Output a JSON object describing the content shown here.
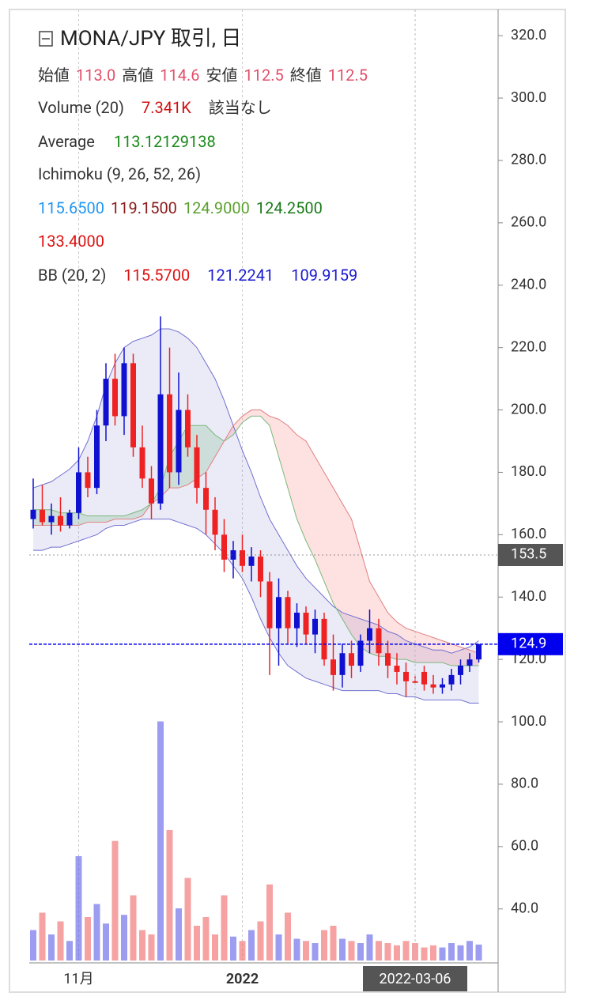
{
  "chart_data": {
    "type": "candlestick",
    "title": "MONA/JPY 取引, 日",
    "info": [
      [
        {
          "text": "始値"
        },
        {
          "text": "113.0",
          "color": "#e0506a"
        },
        {
          "text": "高値"
        },
        {
          "text": "114.6",
          "color": "#e0506a"
        },
        {
          "text": "安値"
        },
        {
          "text": "112.5",
          "color": "#e0506a"
        },
        {
          "text": "終値"
        },
        {
          "text": "112.5",
          "color": "#e0506a"
        }
      ],
      [
        {
          "text": "Volume (20)"
        },
        {
          "text": "7.341K",
          "color": "#d01010"
        },
        {
          "text": "該当なし"
        }
      ],
      [
        {
          "text": "Average"
        },
        {
          "text": "113.12129138",
          "color": "#1a8a1a"
        }
      ],
      [
        {
          "text": "Ichimoku (9, 26, 52, 26)"
        }
      ],
      [
        {
          "text": "115.6500",
          "color": "#2196f3"
        },
        {
          "text": "119.1500",
          "color": "#8b1a1a"
        },
        {
          "text": "124.9000",
          "color": "#5aa02c"
        },
        {
          "text": "124.2500",
          "color": "#1a7a1a"
        }
      ],
      [
        {
          "text": "133.4000",
          "color": "#dd1111"
        }
      ],
      [
        {
          "text": "BB (20, 2)"
        },
        {
          "text": "115.5700",
          "color": "#dd1111"
        },
        {
          "text": "121.2241",
          "color": "#1a1ad0"
        },
        {
          "text": "109.9159",
          "color": "#1a1ad0"
        }
      ]
    ],
    "categories": [
      null,
      null,
      null,
      null,
      null,
      "11月",
      null,
      null,
      null,
      null,
      null,
      null,
      null,
      null,
      null,
      null,
      null,
      null,
      null,
      null,
      null,
      null,
      null,
      "2022",
      null,
      null,
      null,
      null,
      null,
      null,
      null,
      null,
      null,
      null,
      null,
      null,
      null,
      null,
      null,
      null,
      null,
      null,
      "2022-03-06",
      null,
      null,
      null,
      null,
      null,
      null,
      null
    ],
    "crosshair_index": 42,
    "open": [
      165,
      168,
      164,
      166,
      163,
      167,
      180,
      175,
      195,
      210,
      198,
      215,
      188,
      178,
      170,
      205,
      180,
      200,
      188,
      175,
      168,
      160,
      152,
      155,
      150,
      153,
      145,
      130,
      140,
      130,
      135,
      128,
      133,
      120,
      115,
      122,
      118,
      126,
      130,
      122,
      118,
      116,
      113.0,
      116,
      112,
      111,
      112,
      115,
      118,
      120
    ],
    "high": [
      178,
      176,
      170,
      172,
      168,
      188,
      185,
      200,
      215,
      218,
      220,
      218,
      195,
      182,
      230,
      220,
      212,
      205,
      192,
      180,
      172,
      165,
      158,
      160,
      156,
      155,
      148,
      146,
      142,
      138,
      137,
      136,
      135,
      128,
      125,
      126,
      128,
      136,
      133,
      126,
      122,
      119,
      114.6,
      118,
      115,
      114,
      117,
      120,
      122,
      125
    ],
    "low": [
      162,
      163,
      160,
      161,
      162,
      165,
      172,
      173,
      190,
      195,
      192,
      185,
      175,
      165,
      168,
      175,
      176,
      185,
      170,
      160,
      155,
      148,
      146,
      148,
      145,
      140,
      115,
      118,
      125,
      124,
      125,
      122,
      118,
      110,
      111,
      114,
      116,
      122,
      118,
      114,
      112,
      108,
      112.5,
      110,
      109,
      109,
      110,
      112,
      116,
      119
    ],
    "close": [
      168,
      164,
      166,
      163,
      167,
      180,
      175,
      195,
      210,
      198,
      215,
      188,
      178,
      170,
      205,
      180,
      200,
      188,
      175,
      168,
      160,
      152,
      155,
      150,
      153,
      145,
      130,
      140,
      130,
      135,
      128,
      133,
      120,
      115,
      122,
      118,
      126,
      130,
      122,
      118,
      116,
      113,
      112.5,
      112,
      111,
      112,
      115,
      118,
      120,
      124.9
    ],
    "up_color": "#1010d0",
    "down_color": "#ee2222",
    "volume": [
      14000,
      22000,
      12000,
      18000,
      9000,
      48000,
      20000,
      26000,
      17000,
      55000,
      21000,
      30000,
      14000,
      12000,
      110000,
      60000,
      24000,
      38000,
      16000,
      20000,
      12000,
      30000,
      11000,
      9000,
      14000,
      18000,
      35000,
      12000,
      22000,
      10000,
      9000,
      8000,
      14000,
      16000,
      10000,
      9000,
      8000,
      12000,
      9000,
      8000,
      7000,
      9000,
      8000,
      6000,
      7000,
      6000,
      8000,
      7000,
      9000,
      7341
    ],
    "vlim": [
      0,
      120000
    ],
    "bb_upper": [
      175,
      176,
      177,
      179,
      181,
      184,
      190,
      198,
      208,
      215,
      220,
      222,
      223,
      224,
      226,
      226,
      225,
      223,
      220,
      215,
      210,
      203,
      195,
      187,
      180,
      172,
      165,
      160,
      155,
      150,
      146,
      143,
      140,
      137,
      135,
      134,
      133,
      132,
      131,
      129,
      128,
      126,
      125,
      124,
      123,
      123,
      122,
      123,
      124,
      126
    ],
    "bb_lower": [
      155,
      155,
      156,
      156,
      157,
      158,
      159,
      160,
      162,
      163,
      163,
      164,
      165,
      165,
      165,
      165,
      164,
      163,
      162,
      160,
      157,
      154,
      150,
      146,
      140,
      133,
      127,
      122,
      118,
      116,
      114,
      113,
      112,
      111,
      110,
      110,
      110,
      110,
      110,
      109,
      109,
      108,
      108,
      107,
      107,
      107,
      107,
      107,
      106,
      106
    ],
    "span_a": [
      168,
      168,
      168,
      167,
      167,
      167,
      166,
      166,
      166,
      166,
      166,
      167,
      168,
      170,
      175,
      185,
      190,
      195,
      195,
      195,
      192,
      190,
      192,
      196,
      198,
      198,
      195,
      185,
      175,
      165,
      158,
      152,
      145,
      138,
      133,
      128,
      124,
      122,
      121,
      121,
      120,
      120,
      119,
      119,
      119,
      119,
      118,
      118,
      118,
      118
    ],
    "span_b": [
      163,
      163,
      163,
      163,
      163,
      163,
      164,
      164,
      164,
      165,
      165,
      165,
      166,
      170,
      172,
      175,
      175,
      176,
      178,
      180,
      185,
      190,
      195,
      198,
      200,
      200,
      198,
      197,
      195,
      192,
      190,
      185,
      180,
      175,
      170,
      165,
      155,
      145,
      140,
      135,
      132,
      130,
      129,
      128,
      127,
      126,
      125,
      124,
      123,
      122
    ],
    "ylim": [
      22.7,
      328.4
    ],
    "yticks": [
      {
        "value": 40,
        "label": "40.0"
      },
      {
        "value": 60,
        "label": "60.0"
      },
      {
        "value": 80,
        "label": "80.0"
      },
      {
        "value": 100,
        "label": "100.0"
      },
      {
        "value": 120,
        "label": "120.0"
      },
      {
        "value": 140,
        "label": "140.0"
      },
      {
        "value": 160,
        "label": "160.0"
      },
      {
        "value": 180,
        "label": "180.0"
      },
      {
        "value": 200,
        "label": "200.0"
      },
      {
        "value": 220,
        "label": "220.0"
      },
      {
        "value": 240,
        "label": "240.0"
      },
      {
        "value": 260,
        "label": "260.0"
      },
      {
        "value": 280,
        "label": "280.0"
      },
      {
        "value": 300,
        "label": "300.0"
      },
      {
        "value": 320,
        "label": "320.0"
      }
    ],
    "price_markers": [
      {
        "value": 153.5,
        "color": "#555555"
      },
      {
        "value": 124.9,
        "color": "#0000ee"
      }
    ]
  }
}
